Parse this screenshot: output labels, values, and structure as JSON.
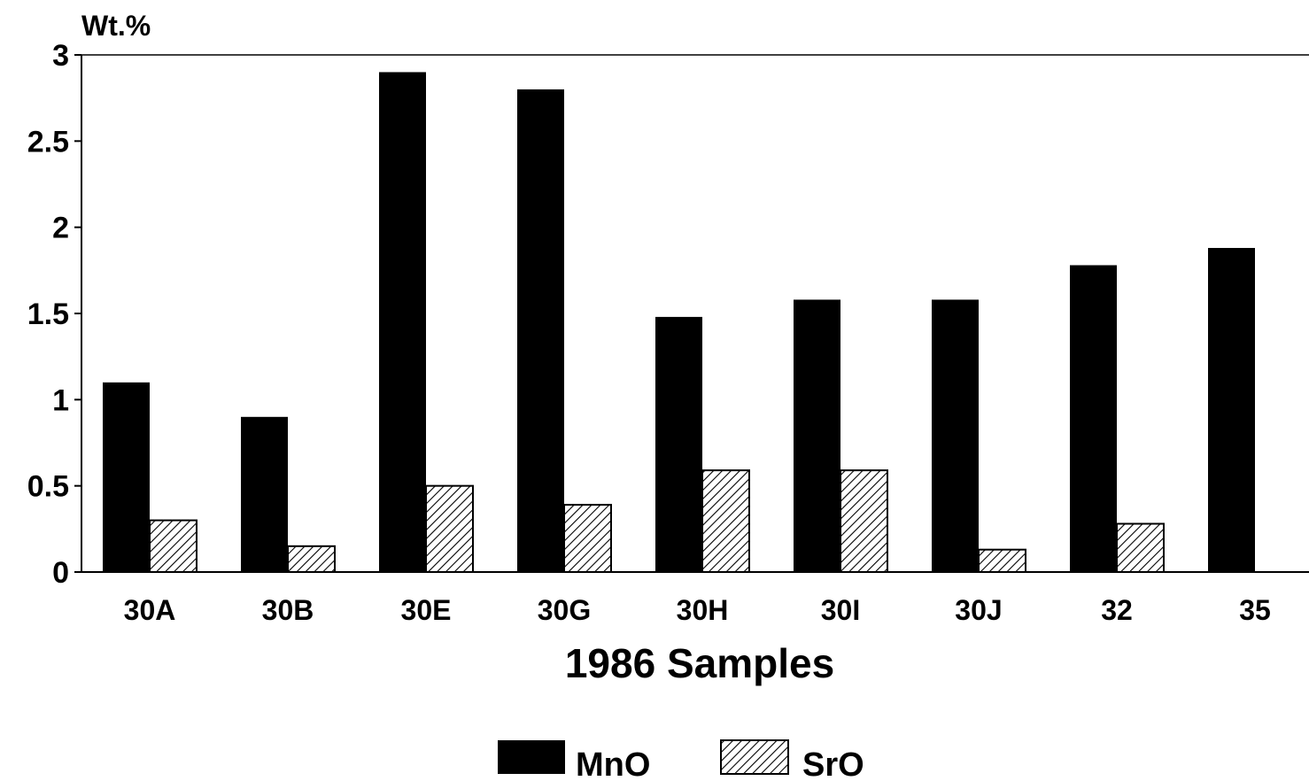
{
  "chart_data": {
    "type": "bar",
    "ylabel": "Wt.%",
    "xlabel": "1986 Samples",
    "categories": [
      "30A",
      "30B",
      "30E",
      "30G",
      "30H",
      "30I",
      "30J",
      "32",
      "35"
    ],
    "series": [
      {
        "name": "MnO",
        "values": [
          1.1,
          0.9,
          2.9,
          2.8,
          1.48,
          1.58,
          1.58,
          1.78,
          1.88
        ],
        "fill": "solid",
        "color": "#000000"
      },
      {
        "name": "SrO",
        "values": [
          0.3,
          0.15,
          0.5,
          0.39,
          0.59,
          0.59,
          0.13,
          0.28,
          null
        ],
        "fill": "hatched",
        "color": "#000000"
      }
    ],
    "ylim": [
      0,
      3
    ],
    "yticks": [
      "0",
      "0.5",
      "1",
      "1.5",
      "2",
      "2.5",
      "3"
    ],
    "grid": false,
    "legend_position": "bottom-center"
  }
}
